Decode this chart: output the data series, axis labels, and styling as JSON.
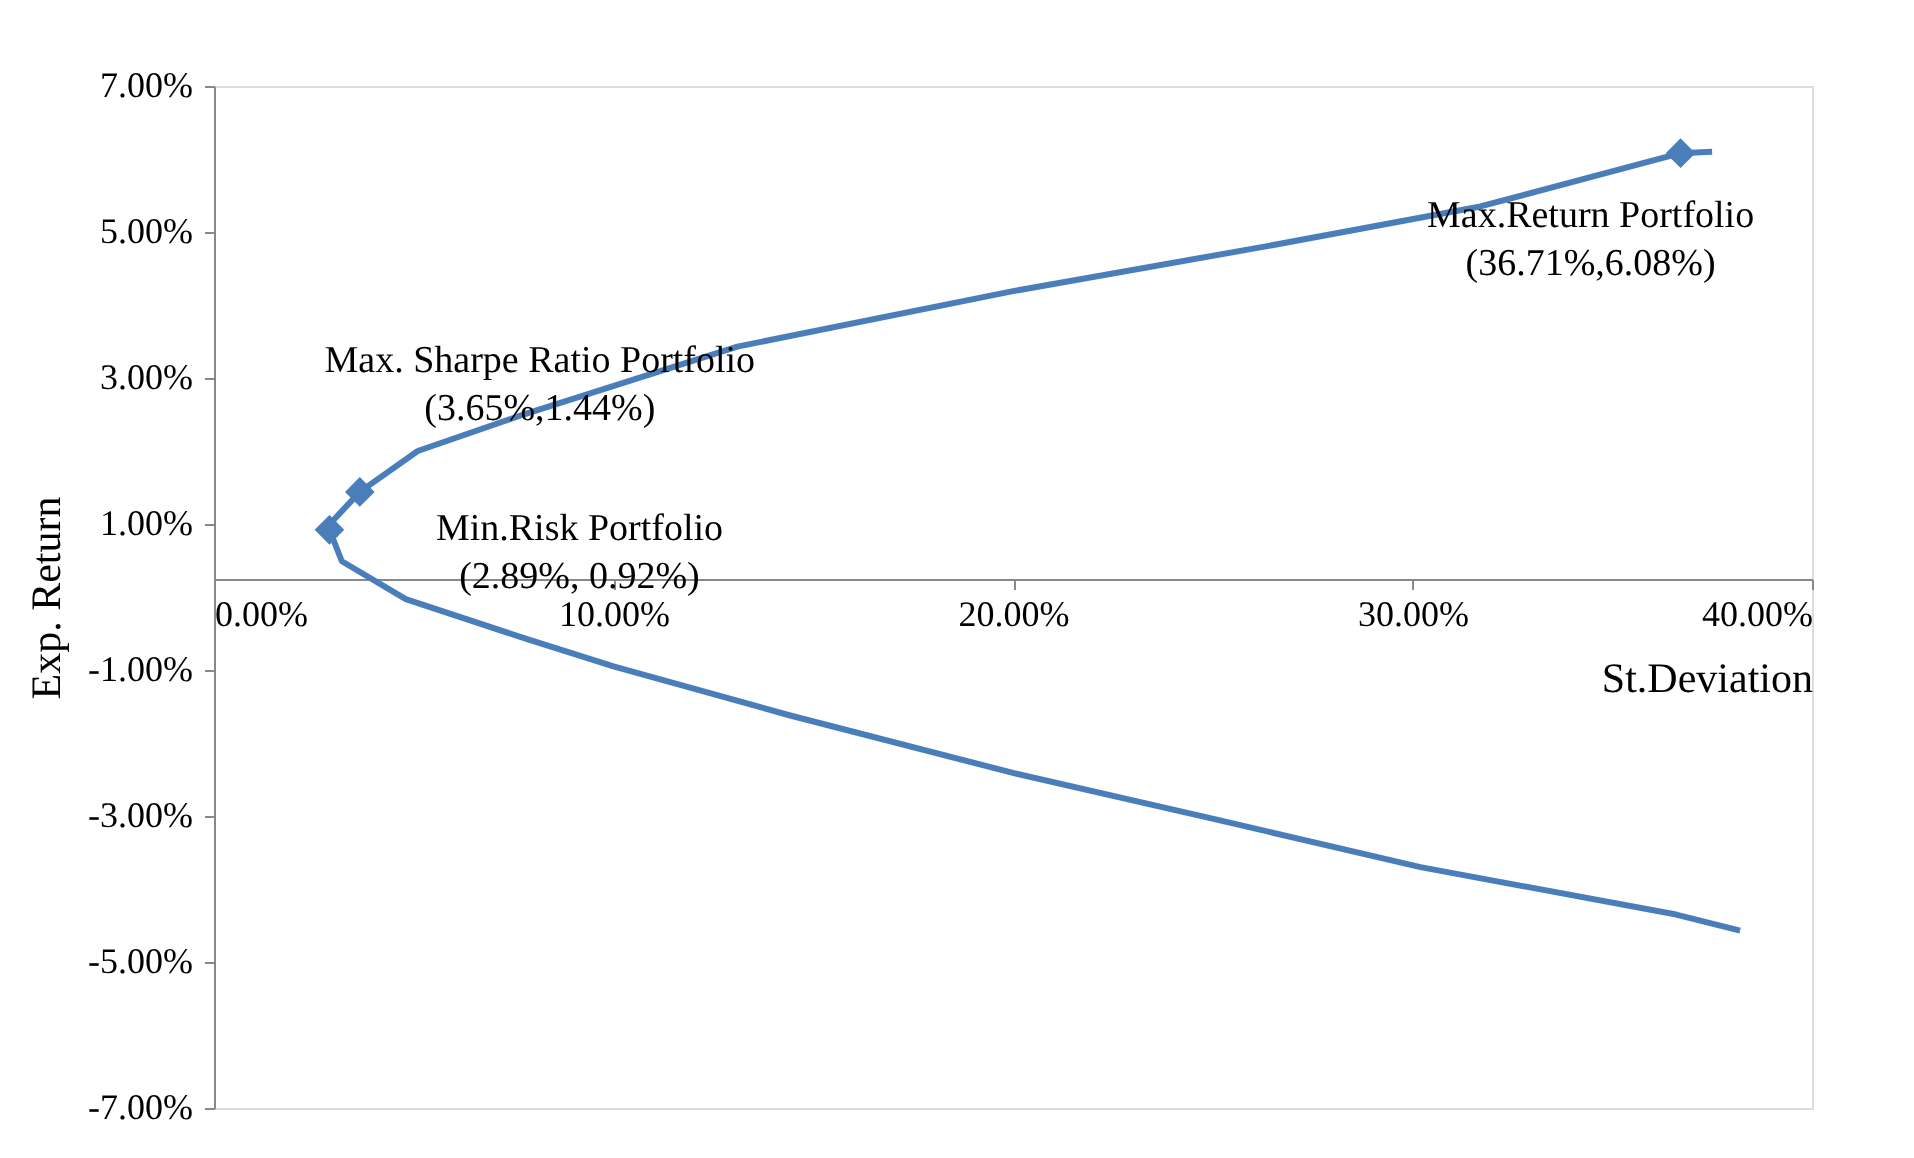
{
  "chart_data": {
    "type": "line",
    "xlabel": "St.Deviation",
    "ylabel": "Exp. Return",
    "xlim": [
      0,
      40
    ],
    "xticks": [
      {
        "value": 0,
        "label": "0.00%"
      },
      {
        "value": 10,
        "label": "10.00%"
      },
      {
        "value": 20,
        "label": "20.00%"
      },
      {
        "value": 30,
        "label": "30.00%"
      },
      {
        "value": 40,
        "label": "40.00%"
      }
    ],
    "ylim": [
      -7,
      7
    ],
    "yticks": [
      {
        "value": -7,
        "label": "-7.00%"
      },
      {
        "value": -5,
        "label": "-5.00%"
      },
      {
        "value": -3,
        "label": "-3.00%"
      },
      {
        "value": -1,
        "label": "-1.00%"
      },
      {
        "value": 1,
        "label": "1.00%"
      },
      {
        "value": 3,
        "label": "3.00%"
      },
      {
        "value": 5,
        "label": "5.00%"
      },
      {
        "value": 7,
        "label": "7.00%"
      }
    ],
    "grid": false,
    "line_style": "solid",
    "series": [
      {
        "color": "#4a7ebb",
        "marker": "none",
        "x": [
          37.5,
          36.71,
          31.7,
          26.4,
          20.0,
          13.1,
          7.8,
          5.1,
          3.65,
          2.9,
          2.89,
          3.2,
          4.8,
          7.8,
          10.0,
          14.4,
          20.0,
          25.1,
          30.2,
          36.6,
          38.2
        ],
        "values": [
          6.1,
          6.08,
          5.35,
          4.81,
          4.19,
          3.43,
          2.51,
          2.0,
          1.44,
          1.0,
          0.92,
          0.49,
          -0.03,
          -0.57,
          -0.95,
          -1.62,
          -2.41,
          -3.05,
          -3.7,
          -4.35,
          -4.57
        ]
      },
      {
        "type": "scatter",
        "color": "#4a7ebb",
        "marker": "diamond",
        "x": [
          36.71,
          3.65,
          2.89
        ],
        "values": [
          6.08,
          1.44,
          0.92
        ]
      }
    ],
    "annotations": [
      {
        "text": "Max.Return Portfolio\n(36.71%,6.08%)",
        "x": 36.71,
        "y": 6.08
      },
      {
        "text": "Max. Sharpe Ratio Portfolio\n(3.65%,1.44%)",
        "x": 3.65,
        "y": 1.44
      },
      {
        "text": "Min.Risk Portfolio\n(2.89%, 0.92%)",
        "x": 2.89,
        "y": 0.92
      }
    ]
  }
}
